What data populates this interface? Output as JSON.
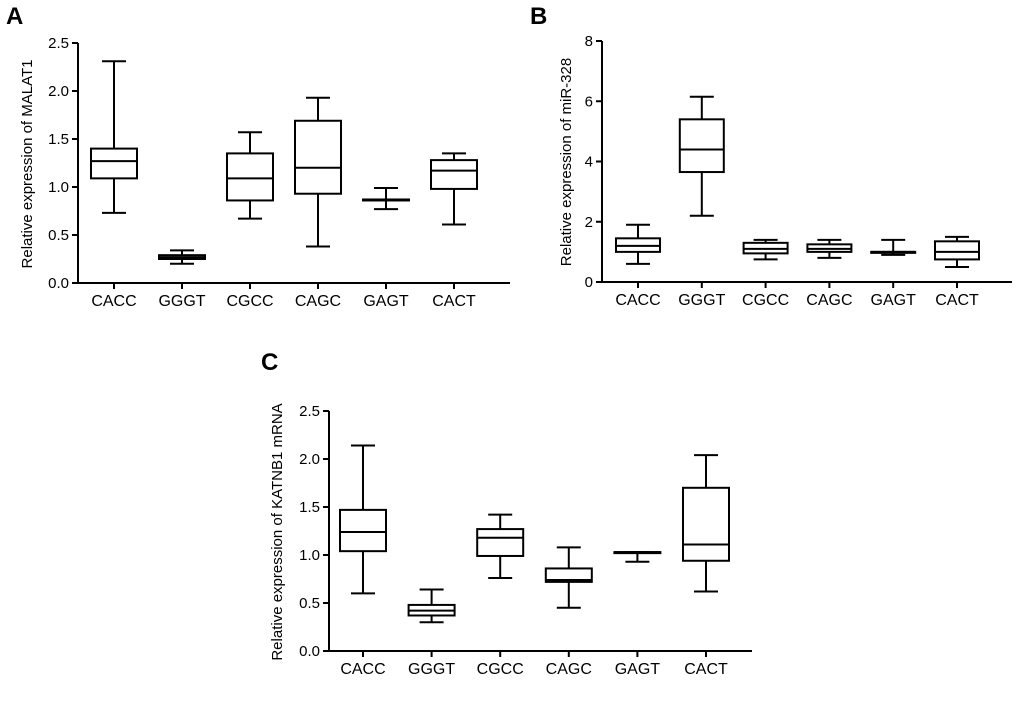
{
  "chart_data": [
    {
      "type": "box",
      "panel": "A",
      "ylabel": "Relative expression of MALAT1",
      "ylim": [
        0,
        2.5
      ],
      "yticks": [
        "0.0",
        "0.5",
        "1.0",
        "1.5",
        "2.0",
        "2.5"
      ],
      "categories": [
        "CACC",
        "GGGT",
        "CGCC",
        "CAGC",
        "GAGT",
        "CACT"
      ],
      "boxes": [
        {
          "min": 0.73,
          "q1": 1.09,
          "median": 1.27,
          "q3": 1.4,
          "max": 2.31
        },
        {
          "min": 0.2,
          "q1": 0.25,
          "median": 0.27,
          "q3": 0.29,
          "max": 0.34
        },
        {
          "min": 0.67,
          "q1": 0.86,
          "median": 1.09,
          "q3": 1.35,
          "max": 1.57
        },
        {
          "min": 0.38,
          "q1": 0.93,
          "median": 1.2,
          "q3": 1.69,
          "max": 1.93
        },
        {
          "min": 0.77,
          "q1": 0.86,
          "median": 0.87,
          "q3": 0.87,
          "max": 0.99
        },
        {
          "min": 0.61,
          "q1": 0.98,
          "median": 1.17,
          "q3": 1.28,
          "max": 1.35
        }
      ]
    },
    {
      "type": "box",
      "panel": "B",
      "ylabel": "Relative expression of miR-328",
      "ylim": [
        0,
        8
      ],
      "yticks": [
        "0",
        "2",
        "4",
        "6",
        "8"
      ],
      "categories": [
        "CACC",
        "GGGT",
        "CGCC",
        "CAGC",
        "GAGT",
        "CACT"
      ],
      "boxes": [
        {
          "min": 0.6,
          "q1": 1.0,
          "median": 1.2,
          "q3": 1.45,
          "max": 1.9
        },
        {
          "min": 2.2,
          "q1": 3.65,
          "median": 4.4,
          "q3": 5.4,
          "max": 6.15
        },
        {
          "min": 0.75,
          "q1": 0.95,
          "median": 1.1,
          "q3": 1.3,
          "max": 1.4
        },
        {
          "min": 0.8,
          "q1": 1.0,
          "median": 1.1,
          "q3": 1.25,
          "max": 1.4
        },
        {
          "min": 0.9,
          "q1": 0.98,
          "median": 1.0,
          "q3": 1.0,
          "max": 1.4
        },
        {
          "min": 0.5,
          "q1": 0.75,
          "median": 1.0,
          "q3": 1.35,
          "max": 1.5
        }
      ]
    },
    {
      "type": "box",
      "panel": "C",
      "ylabel": "Relative expression of KATNB1 mRNA",
      "ylim": [
        0,
        2.5
      ],
      "yticks": [
        "0.0",
        "0.5",
        "1.0",
        "1.5",
        "2.0",
        "2.5"
      ],
      "categories": [
        "CACC",
        "GGGT",
        "CGCC",
        "CAGC",
        "GAGT",
        "CACT"
      ],
      "boxes": [
        {
          "min": 0.6,
          "q1": 1.04,
          "median": 1.24,
          "q3": 1.47,
          "max": 2.14
        },
        {
          "min": 0.3,
          "q1": 0.37,
          "median": 0.42,
          "q3": 0.48,
          "max": 0.64
        },
        {
          "min": 0.76,
          "q1": 0.99,
          "median": 1.18,
          "q3": 1.27,
          "max": 1.42
        },
        {
          "min": 0.45,
          "q1": 0.72,
          "median": 0.74,
          "q3": 0.86,
          "max": 1.08
        },
        {
          "min": 0.93,
          "q1": 1.02,
          "median": 1.03,
          "q3": 1.03,
          "max": 1.03
        },
        {
          "min": 0.62,
          "q1": 0.94,
          "median": 1.11,
          "q3": 1.7,
          "max": 2.04
        }
      ]
    }
  ]
}
